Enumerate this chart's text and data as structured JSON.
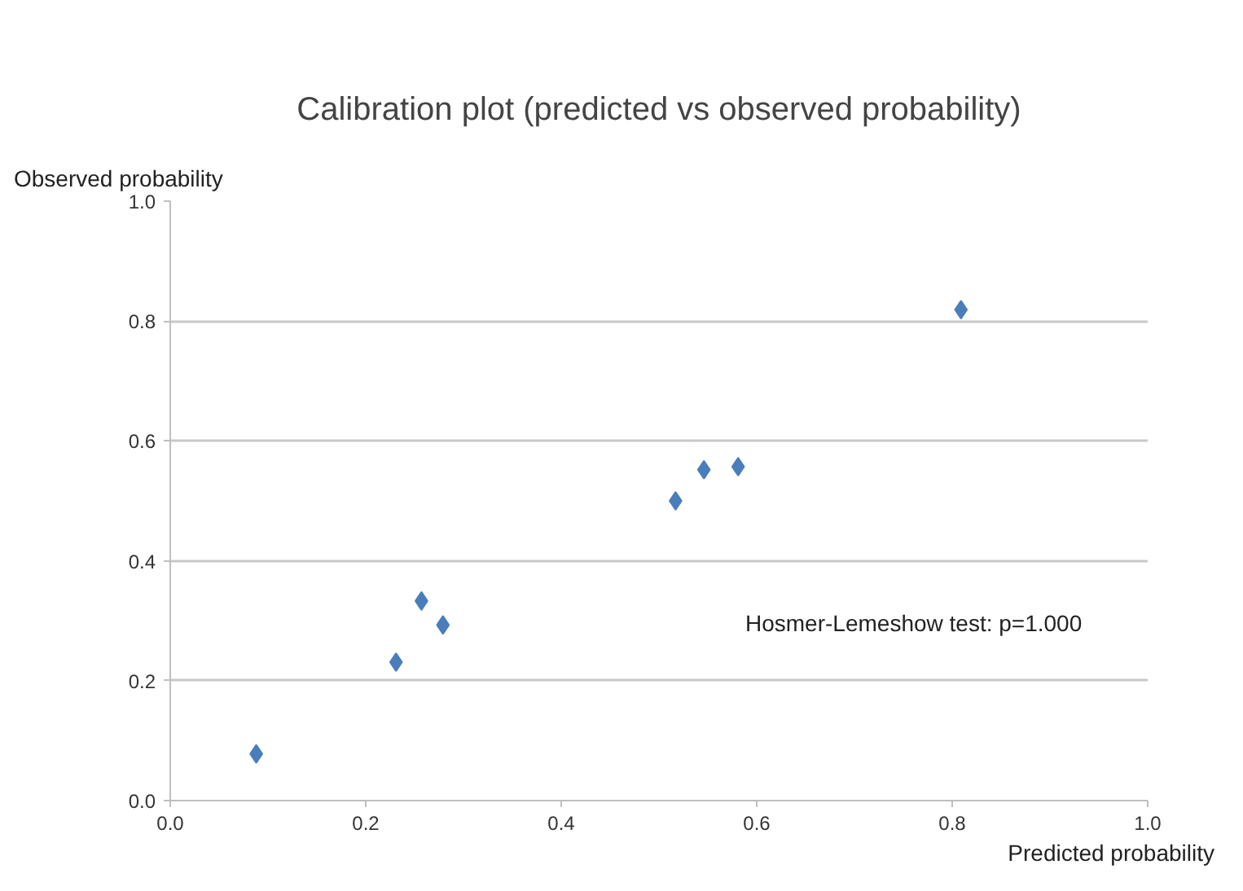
{
  "chart_data": {
    "type": "scatter",
    "title": "Calibration plot (predicted vs observed probability)",
    "xlabel": "Predicted probability",
    "ylabel": "Observed probability",
    "x": [
      0.088,
      0.231,
      0.257,
      0.279,
      0.517,
      0.546,
      0.581,
      0.809
    ],
    "values": [
      0.078,
      0.231,
      0.333,
      0.293,
      0.5,
      0.552,
      0.557,
      0.819
    ],
    "color": "#4a7ebb",
    "marker": "diamond",
    "grid": "y",
    "xlim": [
      0,
      1
    ],
    "ylim": [
      0,
      1
    ],
    "xticks": [
      {
        "value": 0,
        "label": "0.0"
      },
      {
        "value": 0.2,
        "label": "0.2"
      },
      {
        "value": 0.4,
        "label": "0.4"
      },
      {
        "value": 0.6,
        "label": "0.6"
      },
      {
        "value": 0.8,
        "label": "0.8"
      },
      {
        "value": 1,
        "label": "1.0"
      }
    ],
    "yticks": [
      {
        "value": 0,
        "label": "0.0"
      },
      {
        "value": 0.2,
        "label": "0.2"
      },
      {
        "value": 0.4,
        "label": "0.4"
      },
      {
        "value": 0.6,
        "label": "0.6"
      },
      {
        "value": 0.8,
        "label": "0.8"
      },
      {
        "value": 1,
        "label": "1.0"
      }
    ],
    "annotations": [
      "Hosmer-Lemeshow test: p=1.000"
    ]
  }
}
